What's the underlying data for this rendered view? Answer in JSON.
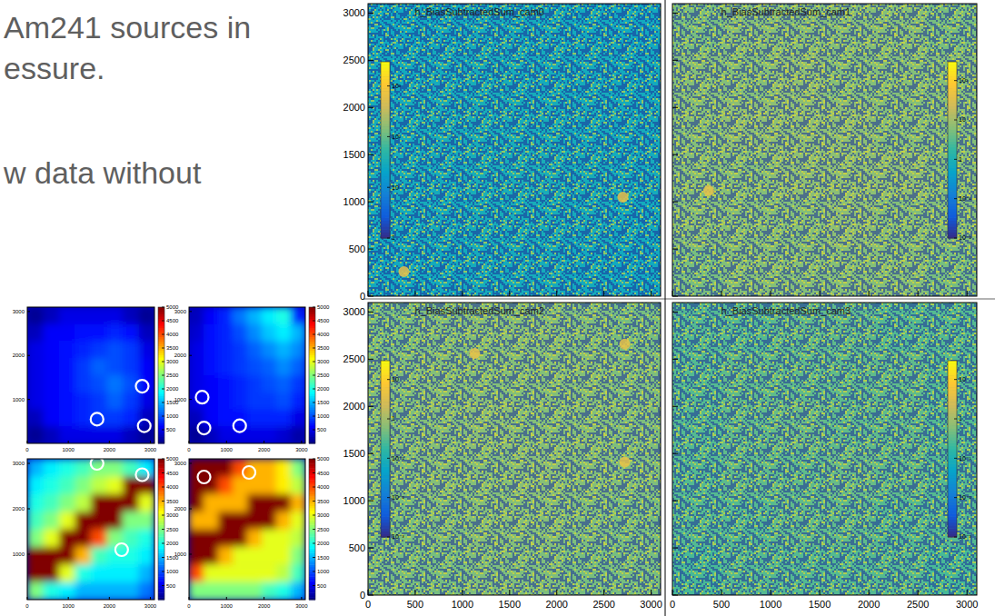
{
  "slide_text": [
    "Am241 sources in",
    "essure.",
    "w data without"
  ],
  "chart_data": [
    {
      "type": "heatmap",
      "color": "jet",
      "xlim": [
        0,
        3100
      ],
      "ylim": [
        0,
        3100
      ],
      "xticks": [
        0,
        1000,
        2000,
        3000
      ],
      "yticks": [
        1000,
        2000,
        3000
      ],
      "zlim": [
        0,
        5000
      ],
      "zticks": [
        500,
        1000,
        1500,
        2000,
        2500,
        3000,
        3500,
        4000,
        4500,
        5000
      ],
      "cells": [
        [
          100,
          300,
          500,
          500,
          500,
          500,
          300,
          100
        ],
        [
          300,
          600,
          600,
          700,
          700,
          800,
          700,
          300
        ],
        [
          500,
          600,
          700,
          800,
          900,
          1000,
          900,
          500
        ],
        [
          500,
          600,
          700,
          900,
          1100,
          1000,
          900,
          600
        ],
        [
          500,
          600,
          700,
          900,
          1000,
          1200,
          1000,
          600
        ],
        [
          500,
          600,
          700,
          800,
          900,
          1100,
          900,
          500
        ],
        [
          300,
          600,
          700,
          800,
          900,
          900,
          800,
          300
        ],
        [
          100,
          300,
          500,
          500,
          500,
          500,
          300,
          100
        ]
      ],
      "circles": [
        {
          "x": 2800,
          "y": 1300
        },
        {
          "x": 1700,
          "y": 550
        },
        {
          "x": 2850,
          "y": 400
        }
      ]
    },
    {
      "type": "heatmap",
      "color": "jet",
      "xlim": [
        0,
        3100
      ],
      "ylim": [
        0,
        3100
      ],
      "xticks": [
        0,
        1000,
        2000,
        3000
      ],
      "yticks": [
        1000,
        2000,
        3000
      ],
      "zlim": [
        0,
        5000
      ],
      "zticks": [
        500,
        1000,
        1500,
        2000,
        2500,
        3000,
        3500,
        4000,
        4500,
        5000
      ],
      "cells": [
        [
          300,
          600,
          800,
          1200,
          1500,
          1800,
          2000,
          800
        ],
        [
          400,
          700,
          800,
          1000,
          1300,
          1600,
          1800,
          1500
        ],
        [
          500,
          700,
          800,
          900,
          1100,
          1300,
          1500,
          1300
        ],
        [
          500,
          700,
          800,
          900,
          1000,
          1100,
          1300,
          1100
        ],
        [
          500,
          600,
          700,
          800,
          900,
          1000,
          1100,
          900
        ],
        [
          500,
          600,
          700,
          800,
          900,
          900,
          1000,
          800
        ],
        [
          300,
          600,
          700,
          700,
          800,
          800,
          800,
          500
        ],
        [
          100,
          300,
          500,
          500,
          500,
          500,
          400,
          200
        ]
      ],
      "circles": [
        {
          "x": 350,
          "y": 1050
        },
        {
          "x": 400,
          "y": 350
        },
        {
          "x": 1350,
          "y": 400
        }
      ]
    },
    {
      "type": "heatmap",
      "color": "jet",
      "xlim": [
        0,
        3100
      ],
      "ylim": [
        0,
        3100
      ],
      "xticks": [
        0,
        1000,
        2000,
        3000
      ],
      "yticks": [
        1000,
        2000,
        3000
      ],
      "zlim": [
        0,
        5000
      ],
      "zticks": [
        500,
        1000,
        1500,
        2000,
        2500,
        3000,
        3500,
        4000,
        4500,
        5000
      ],
      "cells": [
        [
          1500,
          1800,
          2000,
          2200,
          2500,
          2500,
          2200,
          1800
        ],
        [
          1800,
          2000,
          2200,
          2500,
          2800,
          3000,
          5000,
          5000
        ],
        [
          2000,
          2200,
          2500,
          2800,
          5000,
          5000,
          5000,
          3000
        ],
        [
          2200,
          2500,
          3000,
          5000,
          5000,
          5000,
          2500,
          2500
        ],
        [
          2500,
          3000,
          5000,
          5000,
          4000,
          2500,
          2200,
          2000
        ],
        [
          5000,
          5000,
          5000,
          3500,
          2200,
          2000,
          2000,
          1800
        ],
        [
          5000,
          5000,
          3000,
          2000,
          1800,
          1800,
          1800,
          1500
        ],
        [
          2500,
          2000,
          1800,
          1500,
          1500,
          1500,
          1500,
          1200
        ]
      ],
      "circles": [
        {
          "x": 1700,
          "y": 3000
        },
        {
          "x": 2800,
          "y": 2750
        },
        {
          "x": 2300,
          "y": 1100
        }
      ]
    },
    {
      "type": "heatmap",
      "color": "jet",
      "xlim": [
        0,
        3100
      ],
      "ylim": [
        0,
        3100
      ],
      "xticks": [
        0,
        1000,
        2000,
        3000
      ],
      "yticks": [
        1000,
        2000,
        3000
      ],
      "zlim": [
        0,
        5000
      ],
      "zticks": [
        500,
        1000,
        1500,
        2000,
        2500,
        3000,
        3500,
        4000,
        4500,
        5000
      ],
      "cells": [
        [
          5000,
          5000,
          5000,
          4000,
          3500,
          3500,
          3200,
          2500
        ],
        [
          5000,
          5000,
          4000,
          3500,
          3500,
          3500,
          3200,
          2800
        ],
        [
          5000,
          3500,
          3500,
          3500,
          5000,
          5000,
          5000,
          3500
        ],
        [
          3500,
          3500,
          5000,
          5000,
          5000,
          5000,
          3500,
          3000
        ],
        [
          5000,
          5000,
          5000,
          5000,
          3500,
          3000,
          3000,
          2800
        ],
        [
          5000,
          5000,
          3500,
          3000,
          3000,
          3000,
          3000,
          2500
        ],
        [
          4000,
          3000,
          3000,
          3000,
          3000,
          3000,
          2800,
          2200
        ],
        [
          2500,
          2500,
          2500,
          2500,
          2500,
          2200,
          2000,
          1500
        ]
      ],
      "circles": [
        {
          "x": 400,
          "y": 2700
        },
        {
          "x": 1600,
          "y": 2800
        }
      ]
    },
    {
      "type": "heatmap",
      "title": "h_BiasSubtractedSum_cam0",
      "color": "bird",
      "log": true,
      "tick_labels": "y",
      "xlim": [
        0,
        3100
      ],
      "ylim": [
        0,
        3100
      ],
      "xticks": [
        0,
        500,
        1000,
        1500,
        2000,
        2500,
        3000
      ],
      "yticks": [
        0,
        500,
        1000,
        1500,
        2000,
        2500,
        3000
      ],
      "zlim": [
        1,
        3000
      ],
      "zticks": [
        1,
        10,
        {
          "value": 100,
          "label": "10²"
        },
        {
          "value": 1000,
          "label": "10³"
        }
      ],
      "cells": [
        [
          26,
          28,
          30,
          29,
          28,
          27
        ],
        [
          28,
          30,
          31,
          30,
          29,
          28
        ],
        [
          29,
          31,
          32,
          31,
          30,
          29
        ],
        [
          29,
          30,
          32,
          33,
          31,
          29
        ],
        [
          28,
          30,
          31,
          31,
          30,
          28
        ],
        [
          27,
          28,
          29,
          30,
          28,
          27
        ]
      ],
      "spots": [
        {
          "x": 2700,
          "y": 1050
        },
        {
          "x": 380,
          "y": 260
        }
      ]
    },
    {
      "type": "heatmap",
      "title": "h_BiasSubtractedSum_cam1",
      "color": "bird",
      "log": true,
      "tick_labels": false,
      "xlim": [
        0,
        3100
      ],
      "ylim": [
        0,
        3100
      ],
      "xticks": [
        0,
        500,
        1000,
        1500,
        2000,
        2500,
        3000
      ],
      "yticks": [
        0,
        500,
        1000,
        1500,
        2000,
        2500,
        3000
      ],
      "zlim": [
        0.01,
        300
      ],
      "zticks": [
        {
          "value": 0.01,
          "label": "10⁻²"
        },
        {
          "value": 0.1,
          "label": "10⁻¹"
        },
        1,
        10,
        {
          "value": 100,
          "label": "10²"
        }
      ],
      "cells": [
        [
          5,
          6,
          6,
          6,
          6,
          5
        ],
        [
          6,
          6,
          7,
          6,
          6,
          6
        ],
        [
          6,
          7,
          7,
          7,
          6,
          6
        ],
        [
          6,
          6,
          7,
          7,
          7,
          6
        ],
        [
          6,
          6,
          6,
          7,
          6,
          6
        ],
        [
          5,
          6,
          6,
          6,
          6,
          5
        ]
      ],
      "spots": [
        {
          "x": 370,
          "y": 1120
        }
      ]
    },
    {
      "type": "heatmap",
      "title": "h_BiasSubtractedSum_cam2",
      "color": "bird",
      "log": true,
      "tick_labels": true,
      "xlim": [
        0,
        3100
      ],
      "ylim": [
        0,
        3100
      ],
      "xticks": [
        0,
        500,
        1000,
        1500,
        2000,
        2500,
        3000
      ],
      "yticks": [
        0,
        500,
        1000,
        1500,
        2000,
        2500,
        3000
      ],
      "zlim": [
        0.001,
        30
      ],
      "zticks": [
        {
          "value": 0.001,
          "label": "10⁻³"
        },
        {
          "value": 0.01,
          "label": "10⁻²"
        },
        {
          "value": 0.1,
          "label": "10⁻¹"
        },
        1,
        10
      ],
      "cells": [
        [
          0.5,
          0.55,
          0.6,
          0.6,
          0.55,
          0.5
        ],
        [
          0.55,
          0.6,
          0.6,
          0.6,
          0.6,
          0.55
        ],
        [
          0.55,
          0.6,
          0.65,
          0.6,
          0.6,
          0.55
        ],
        [
          0.55,
          0.6,
          0.6,
          0.65,
          0.6,
          0.55
        ],
        [
          0.5,
          0.55,
          0.6,
          0.6,
          0.55,
          0.5
        ],
        [
          0.5,
          0.5,
          0.55,
          0.55,
          0.5,
          0.5
        ]
      ],
      "spots": [
        {
          "x": 1130,
          "y": 2560
        },
        {
          "x": 2720,
          "y": 2660
        },
        {
          "x": 2720,
          "y": 1410
        }
      ]
    },
    {
      "type": "heatmap",
      "title": "h_BiasSubtractedSum_cam3",
      "color": "bird",
      "log": true,
      "tick_labels": "x",
      "xlim": [
        0,
        3100
      ],
      "ylim": [
        0,
        3100
      ],
      "xticks": [
        0,
        500,
        1000,
        1500,
        2000,
        2500,
        3000
      ],
      "yticks": [
        0,
        500,
        1000,
        1500,
        2000,
        2500,
        3000
      ],
      "zlim": [
        0.001,
        30
      ],
      "zticks": [
        {
          "value": 0.001,
          "label": "10⁻³"
        },
        {
          "value": 0.01,
          "label": "10⁻²"
        },
        {
          "value": 0.1,
          "label": "10⁻¹"
        },
        1,
        10
      ],
      "cells": [
        [
          0.3,
          0.3,
          0.35,
          0.35,
          0.3,
          0.3
        ],
        [
          0.3,
          0.35,
          0.35,
          0.35,
          0.35,
          0.3
        ],
        [
          0.3,
          0.35,
          0.4,
          0.35,
          0.35,
          0.3
        ],
        [
          0.3,
          0.35,
          0.35,
          0.4,
          0.35,
          0.3
        ],
        [
          0.3,
          0.3,
          0.35,
          0.35,
          0.3,
          0.3
        ],
        [
          0.25,
          0.3,
          0.3,
          0.3,
          0.3,
          0.25
        ]
      ]
    }
  ]
}
